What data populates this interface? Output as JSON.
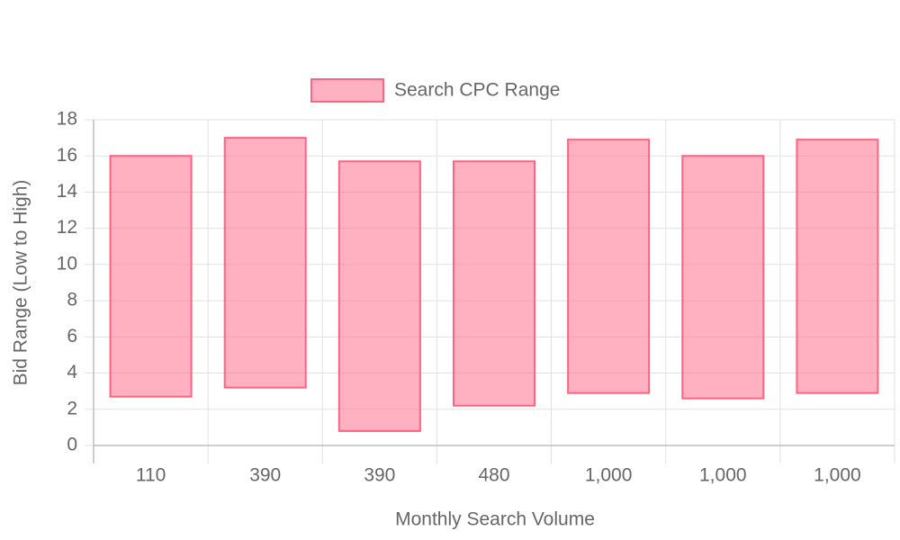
{
  "chart_data": {
    "type": "floating-bar",
    "x_label": "Monthly Search Volume",
    "y_label": "Bid Range (Low to High)",
    "categories": [
      "110",
      "390",
      "390",
      "480",
      "1,000",
      "1,000",
      "1,000"
    ],
    "series": [
      {
        "name": "Search CPC Range",
        "color": "#ff6384",
        "low": [
          2.7,
          3.2,
          0.8,
          2.2,
          2.9,
          2.6,
          2.9
        ],
        "high": [
          16.0,
          17.0,
          15.7,
          15.7,
          16.9,
          16.0,
          16.9
        ]
      }
    ],
    "ylim": [
      0,
      18
    ],
    "yticks": [
      0,
      2,
      4,
      6,
      8,
      10,
      12,
      14,
      16,
      18
    ],
    "grid": true,
    "legend": "top"
  }
}
